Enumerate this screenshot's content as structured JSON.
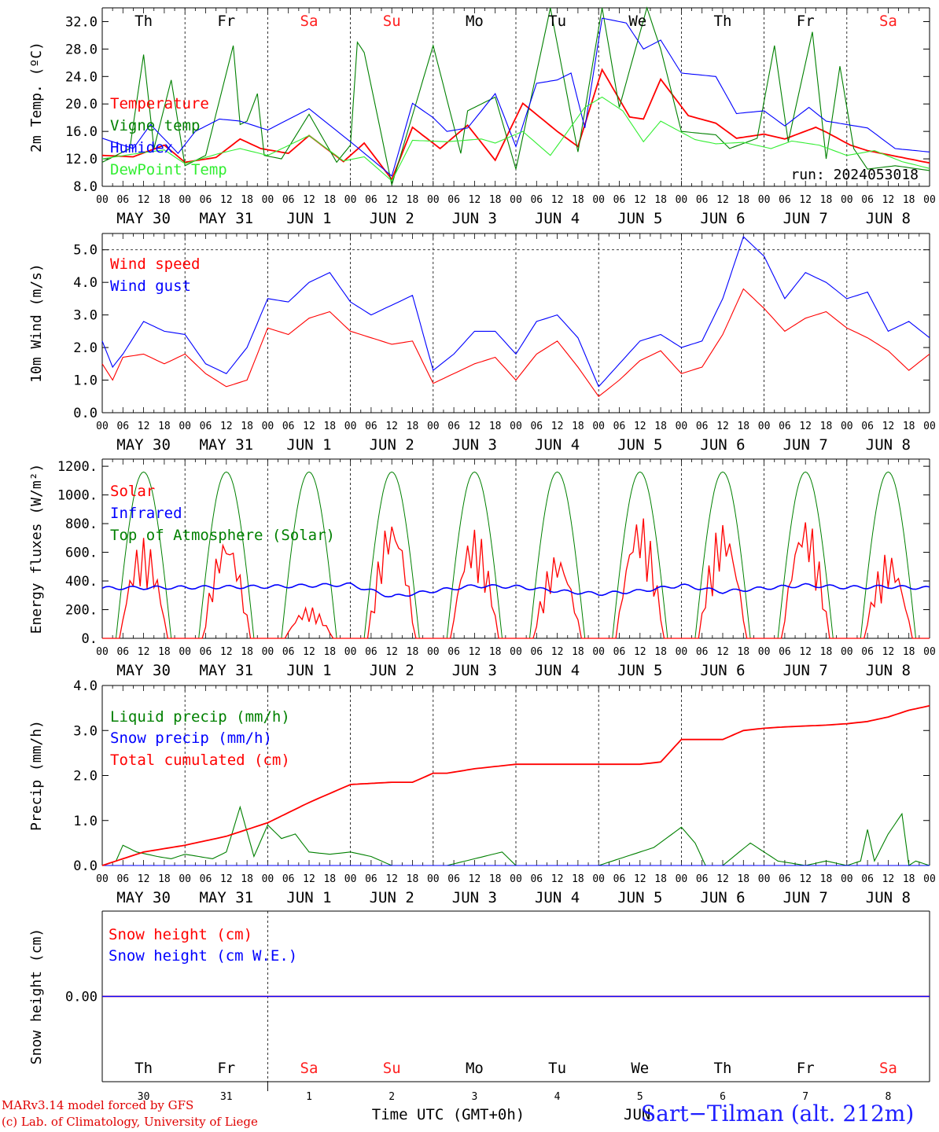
{
  "footer": {
    "credit_line1": "MARv3.14 model forced by GFS",
    "credit_line2": "(c) Lab. of Climatology, University of Liege",
    "station": "Sart−Tilman (alt. 212m)",
    "xaxis_title": "Time UTC (GMT+0h)",
    "overlap_text": "JUN"
  },
  "run_label": "run: 2024053018",
  "colors": {
    "red": "#ff0000",
    "green": "#008000",
    "blue": "#0000ff",
    "lightgreen": "#33ee33",
    "purple": "#800080",
    "weekend": "#ff2020",
    "text": "#000000"
  },
  "axis_common": {
    "hour_ticks": [
      "00",
      "06",
      "12",
      "18"
    ],
    "day_labels": [
      "MAY 30",
      "MAY 31",
      "JUN  1",
      "JUN  2",
      "JUN  3",
      "JUN  4",
      "JUN  5",
      "JUN  6",
      "JUN  7",
      "JUN  8"
    ],
    "final_tick": "00",
    "weekdays": [
      {
        "label": "Th",
        "weekend": false
      },
      {
        "label": "Fr",
        "weekend": false
      },
      {
        "label": "Sa",
        "weekend": true
      },
      {
        "label": "Su",
        "weekend": true
      },
      {
        "label": "Mo",
        "weekend": false
      },
      {
        "label": "Tu",
        "weekend": false
      },
      {
        "label": "We",
        "weekend": false
      },
      {
        "label": "Th",
        "weekend": false
      },
      {
        "label": "Fr",
        "weekend": false
      },
      {
        "label": "Sa",
        "weekend": true
      }
    ],
    "day_numbers": [
      "30",
      "31",
      "1",
      "2",
      "3",
      "4",
      "5",
      "6",
      "7",
      "8"
    ]
  },
  "chart_data": [
    {
      "type": "line",
      "ylabel": "2m Temp. (ºC)",
      "ylim": [
        8,
        34
      ],
      "yticks": [
        "8.0",
        "12.0",
        "16.0",
        "20.0",
        "24.0",
        "28.0",
        "32.0"
      ],
      "x_unit": "hours since MAY 30 00 UTC",
      "legend": [
        "Temperature",
        "Vigne temp",
        "Humidex",
        "DewPoint Temp"
      ],
      "series": [
        {
          "name": "Temperature",
          "color": "red",
          "x": [
            0,
            9,
            18,
            24,
            33,
            40,
            46,
            54,
            60,
            70,
            76,
            84,
            90,
            98,
            106,
            114,
            122,
            132,
            138,
            145,
            153,
            157,
            162,
            170,
            178,
            184,
            192,
            198,
            207,
            210,
            217,
            222,
            231,
            240
          ],
          "values": [
            12.5,
            12.3,
            14.0,
            11.5,
            12.2,
            14.9,
            13.5,
            12.8,
            15.4,
            11.6,
            14.3,
            9.0,
            16.6,
            13.5,
            16.9,
            11.8,
            20.1,
            16.0,
            13.8,
            25.0,
            18.1,
            17.8,
            23.6,
            18.3,
            17.2,
            15.0,
            15.6,
            14.9,
            16.6,
            15.9,
            14.0,
            13.2,
            12.3,
            11.4
          ]
        },
        {
          "name": "Vigne temp",
          "color": "green",
          "x": [
            0,
            8,
            12,
            15,
            20,
            24,
            30,
            38,
            40,
            42,
            45,
            47,
            52,
            60,
            68,
            72,
            74,
            76,
            84,
            96,
            104,
            106,
            114,
            120,
            130,
            138,
            145,
            150,
            158,
            162,
            168,
            178,
            182,
            190,
            195,
            199,
            206,
            210,
            214,
            218,
            222,
            230,
            240
          ],
          "values": [
            11.5,
            13.5,
            27.2,
            13.5,
            23.5,
            11.0,
            12.5,
            28.5,
            17.0,
            17.5,
            21.5,
            12.5,
            12.0,
            18.5,
            11.5,
            14.0,
            29.0,
            27.5,
            8.2,
            28.5,
            12.8,
            19.0,
            21.0,
            10.5,
            34.0,
            13.0,
            34.0,
            19.5,
            34.0,
            28.0,
            16.0,
            15.5,
            13.5,
            15.0,
            28.5,
            14.5,
            30.5,
            12.0,
            25.5,
            13.5,
            10.5,
            11.0,
            10.3
          ]
        },
        {
          "name": "Humidex",
          "color": "blue",
          "x": [
            0,
            9,
            14,
            22,
            27,
            34,
            40,
            48,
            60,
            72,
            84,
            90,
            96,
            100,
            106,
            114,
            120,
            126,
            132,
            136,
            140,
            145,
            152,
            157,
            162,
            168,
            178,
            184,
            192,
            198,
            205,
            210,
            216,
            222,
            230,
            240
          ],
          "values": [
            15.0,
            13.5,
            17.0,
            12.8,
            16.0,
            17.8,
            17.5,
            16.2,
            19.3,
            14.5,
            9.5,
            20.1,
            18.0,
            16.0,
            16.5,
            21.5,
            13.8,
            23.0,
            23.5,
            24.5,
            16.5,
            32.5,
            31.8,
            28.0,
            29.3,
            24.5,
            24.0,
            18.6,
            19.0,
            16.8,
            19.5,
            17.5,
            17.0,
            16.5,
            13.5,
            13.0
          ]
        },
        {
          "name": "DewPoint Temp",
          "color": "lightgreen",
          "x": [
            0,
            9,
            18,
            24,
            34,
            40,
            48,
            60,
            70,
            76,
            84,
            90,
            100,
            110,
            114,
            122,
            130,
            140,
            145,
            151,
            157,
            162,
            172,
            178,
            186,
            194,
            200,
            208,
            216,
            224,
            232,
            240
          ],
          "values": [
            12.0,
            12.7,
            13.3,
            11.3,
            12.8,
            13.5,
            12.5,
            15.4,
            11.7,
            12.3,
            8.8,
            14.7,
            14.5,
            14.9,
            14.3,
            16.0,
            12.5,
            19.5,
            21.0,
            19.0,
            14.5,
            17.5,
            14.8,
            14.2,
            14.4,
            13.5,
            14.6,
            14.0,
            12.5,
            13.2,
            11.6,
            10.6
          ]
        }
      ]
    },
    {
      "type": "line",
      "ylabel": "10m Wind (m/s)",
      "ylim": [
        0,
        5.5
      ],
      "yticks": [
        "0.0",
        "1.0",
        "2.0",
        "3.0",
        "4.0",
        "5.0"
      ],
      "x_unit": "hours since MAY 30 00 UTC",
      "legend": [
        "Wind speed",
        "Wind gust"
      ],
      "series": [
        {
          "name": "Wind speed",
          "color": "red",
          "x": [
            0,
            3,
            6,
            12,
            18,
            24,
            30,
            36,
            42,
            48,
            54,
            60,
            66,
            72,
            78,
            84,
            90,
            96,
            102,
            108,
            114,
            120,
            126,
            132,
            138,
            144,
            150,
            156,
            162,
            168,
            174,
            180,
            186,
            192,
            198,
            204,
            210,
            216,
            222,
            228,
            234,
            240
          ],
          "values": [
            1.5,
            1.0,
            1.7,
            1.8,
            1.5,
            1.8,
            1.2,
            0.8,
            1.0,
            2.6,
            2.4,
            2.9,
            3.1,
            2.5,
            2.3,
            2.1,
            2.2,
            0.9,
            1.2,
            1.5,
            1.7,
            1.0,
            1.8,
            2.2,
            1.4,
            0.5,
            1.0,
            1.6,
            1.9,
            1.2,
            1.4,
            2.4,
            3.8,
            3.2,
            2.5,
            2.9,
            3.1,
            2.6,
            2.3,
            1.9,
            1.3,
            1.8
          ]
        },
        {
          "name": "Wind gust",
          "color": "blue",
          "x": [
            0,
            3,
            6,
            12,
            18,
            24,
            30,
            36,
            42,
            48,
            54,
            60,
            66,
            72,
            78,
            84,
            90,
            96,
            102,
            108,
            114,
            120,
            126,
            132,
            138,
            144,
            150,
            156,
            162,
            168,
            174,
            180,
            186,
            192,
            198,
            204,
            210,
            216,
            222,
            228,
            234,
            240
          ],
          "values": [
            2.2,
            1.4,
            1.8,
            2.8,
            2.5,
            2.4,
            1.5,
            1.2,
            2.0,
            3.5,
            3.4,
            4.0,
            4.3,
            3.4,
            3.0,
            3.3,
            3.6,
            1.3,
            1.8,
            2.5,
            2.5,
            1.8,
            2.8,
            3.0,
            2.3,
            0.8,
            1.5,
            2.2,
            2.4,
            2.0,
            2.2,
            3.5,
            5.4,
            4.8,
            3.5,
            4.3,
            4.0,
            3.5,
            3.7,
            2.5,
            2.8,
            2.3
          ]
        }
      ]
    },
    {
      "type": "line",
      "ylabel": "Energy fluxes (W/m²)",
      "ylim": [
        0,
        1250
      ],
      "yticks": [
        "0.",
        "200.",
        "400.",
        "600.",
        "800.",
        "1000.",
        "1200."
      ],
      "x_unit": "hours since MAY 30 00 UTC",
      "legend": [
        "Solar",
        "Infrared",
        "Top of Atmosphere (Solar)"
      ],
      "toa_daily_peak": 1160,
      "toa_day_window_hours": [
        4,
        20
      ],
      "series": [
        {
          "name": "Solar",
          "color": "red",
          "daily_peak_w_m2": [
            700,
            730,
            220,
            860,
            770,
            600,
            870,
            820,
            860,
            600
          ]
        },
        {
          "name": "Infrared",
          "color": "blue",
          "x": [
            0,
            24,
            48,
            72,
            84,
            96,
            108,
            120,
            132,
            144,
            156,
            168,
            180,
            192,
            204,
            216,
            228,
            240
          ],
          "values": [
            350,
            355,
            360,
            375,
            290,
            330,
            365,
            360,
            330,
            310,
            330,
            370,
            325,
            350,
            370,
            355,
            360,
            350
          ]
        },
        {
          "name": "Top of Atmosphere (Solar)",
          "color": "green"
        }
      ]
    },
    {
      "type": "line",
      "ylabel": "Precip (mm/h)",
      "ylim": [
        0,
        4.0
      ],
      "yticks": [
        "0.0",
        "1.0",
        "2.0",
        "3.0",
        "4.0"
      ],
      "x_unit": "hours since MAY 30 00 UTC",
      "legend": [
        "Liquid precip (mm/h)",
        "Snow precip (mm/h)",
        "Total cumulated (cm)"
      ],
      "series": [
        {
          "name": "Liquid precip (mm/h)",
          "color": "green",
          "x": [
            0,
            4,
            6,
            10,
            16,
            20,
            24,
            28,
            32,
            36,
            40,
            44,
            48,
            52,
            56,
            60,
            66,
            72,
            78,
            84,
            90,
            100,
            116,
            120,
            130,
            144,
            160,
            168,
            172,
            175,
            180,
            188,
            196,
            204,
            210,
            216,
            220,
            222,
            224,
            228,
            232,
            234,
            236,
            240
          ],
          "values": [
            0,
            0.1,
            0.45,
            0.3,
            0.2,
            0.15,
            0.25,
            0.2,
            0.15,
            0.3,
            1.3,
            0.2,
            0.9,
            0.6,
            0.7,
            0.3,
            0.25,
            0.3,
            0.2,
            0.0,
            0.0,
            0.0,
            0.3,
            0.0,
            0.0,
            0.0,
            0.4,
            0.85,
            0.5,
            0.0,
            0.0,
            0.5,
            0.1,
            0.0,
            0.1,
            0.0,
            0.1,
            0.8,
            0.1,
            0.7,
            1.15,
            0.0,
            0.1,
            0.0
          ]
        },
        {
          "name": "Snow precip (mm/h)",
          "color": "blue",
          "x": [
            0,
            240
          ],
          "values": [
            0,
            0
          ]
        },
        {
          "name": "Total cumulated (cm)",
          "color": "red",
          "x": [
            0,
            12,
            24,
            36,
            48,
            60,
            72,
            84,
            90,
            96,
            100,
            108,
            120,
            132,
            144,
            156,
            162,
            168,
            174,
            180,
            186,
            192,
            198,
            204,
            210,
            216,
            222,
            228,
            234,
            240
          ],
          "values": [
            0.0,
            0.3,
            0.45,
            0.65,
            0.95,
            1.4,
            1.8,
            1.85,
            1.85,
            2.05,
            2.05,
            2.15,
            2.25,
            2.25,
            2.25,
            2.25,
            2.3,
            2.8,
            2.8,
            2.8,
            3.0,
            3.05,
            3.08,
            3.1,
            3.12,
            3.15,
            3.2,
            3.3,
            3.45,
            3.55
          ]
        }
      ]
    },
    {
      "type": "line",
      "ylabel": "Snow height (cm)",
      "yticks": [
        "0.00"
      ],
      "x_unit": "hours since MAY 30 00 UTC",
      "legend": [
        "Snow height (cm)",
        "Snow height (cm W.E.)"
      ],
      "series": [
        {
          "name": "Snow height (cm)",
          "color": "purple",
          "x": [
            0,
            240
          ],
          "values": [
            0,
            0
          ]
        },
        {
          "name": "Snow height (cm W.E.)",
          "color": "blue",
          "x": [
            0,
            240
          ],
          "values": [
            0,
            0
          ]
        }
      ]
    }
  ]
}
